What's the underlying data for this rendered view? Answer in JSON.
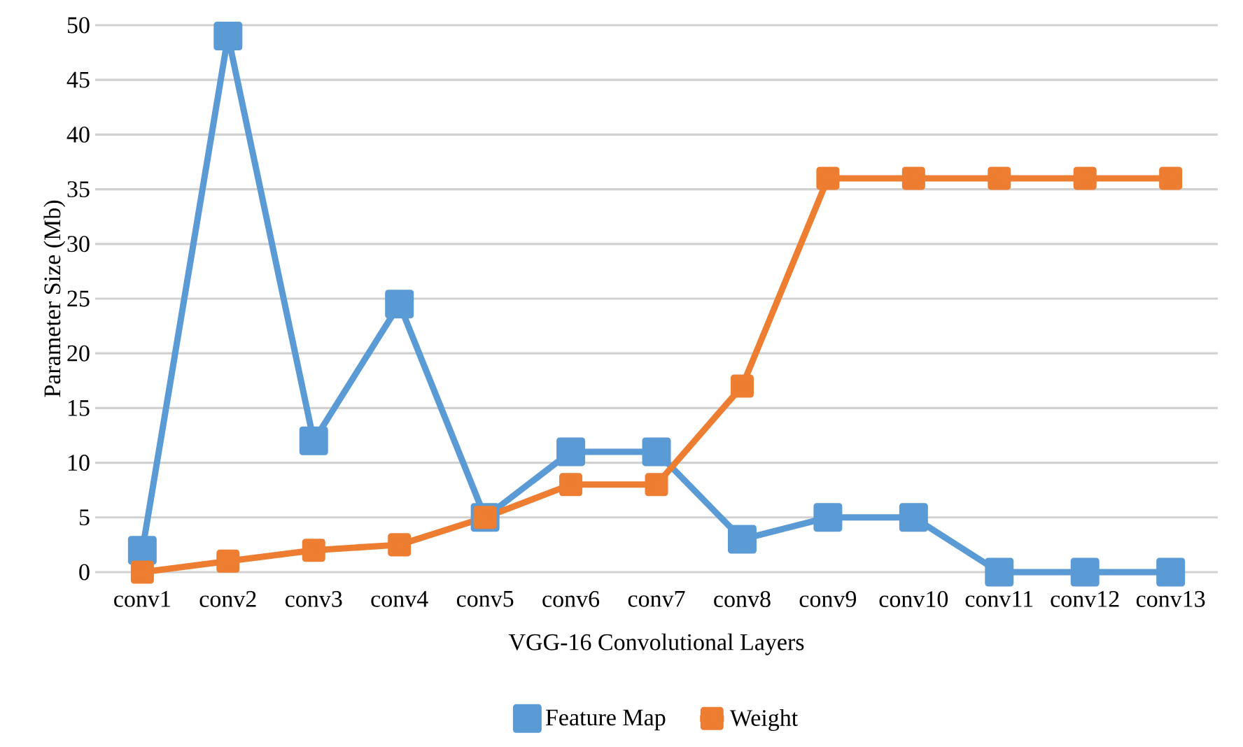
{
  "chart_data": {
    "type": "line",
    "xlabel": "VGG-16  Convolutional Layers",
    "ylabel": "Parameter Size (Mb)",
    "categories": [
      "conv1",
      "conv2",
      "conv3",
      "conv4",
      "conv5",
      "conv6",
      "conv7",
      "conv8",
      "conv9",
      "conv10",
      "conv11",
      "conv12",
      "conv13"
    ],
    "series": [
      {
        "name": "Feature Map",
        "color": "#5b9bd5",
        "values": [
          2,
          49,
          12,
          24.5,
          5,
          11,
          11,
          3,
          5,
          5,
          0,
          0,
          0
        ]
      },
      {
        "name": "Weight",
        "color": "#ed7d31",
        "values": [
          0,
          1,
          2,
          2.5,
          5,
          8,
          8,
          17,
          36,
          36,
          36,
          36,
          36
        ]
      }
    ],
    "ylim": [
      0,
      50
    ],
    "yticks": [
      0,
      5,
      10,
      15,
      20,
      25,
      30,
      35,
      40,
      45,
      50
    ],
    "grid": "y",
    "legend": "bottom",
    "marker": "square",
    "line_style": "solid"
  }
}
